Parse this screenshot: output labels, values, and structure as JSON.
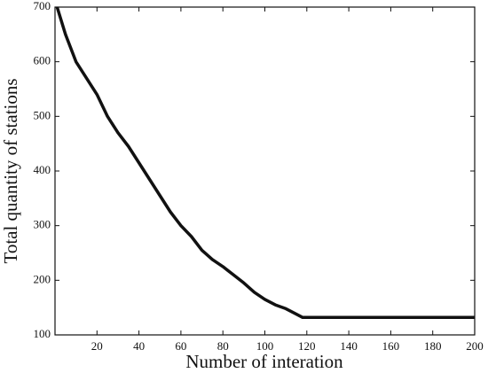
{
  "chart_data": {
    "type": "line",
    "xlabel": "Number of interation",
    "ylabel": "Total quantity of stations",
    "x": [
      1,
      5,
      10,
      15,
      20,
      25,
      30,
      35,
      40,
      45,
      50,
      55,
      60,
      65,
      70,
      75,
      80,
      85,
      90,
      95,
      100,
      105,
      110,
      115,
      118,
      120,
      200
    ],
    "series": [
      {
        "color": "#111111",
        "values": [
          700,
          650,
          600,
          570,
          540,
          500,
          470,
          445,
          415,
          385,
          355,
          325,
          300,
          280,
          255,
          238,
          225,
          210,
          195,
          178,
          165,
          155,
          148,
          138,
          132,
          132,
          132
        ]
      }
    ],
    "xlim": [
      0,
      200
    ],
    "xticks": [
      20,
      40,
      60,
      80,
      100,
      120,
      140,
      160,
      180,
      200
    ],
    "ylim": [
      100,
      700
    ],
    "yticks": [
      100,
      200,
      300,
      400,
      500,
      600,
      700
    ],
    "grid": false
  }
}
